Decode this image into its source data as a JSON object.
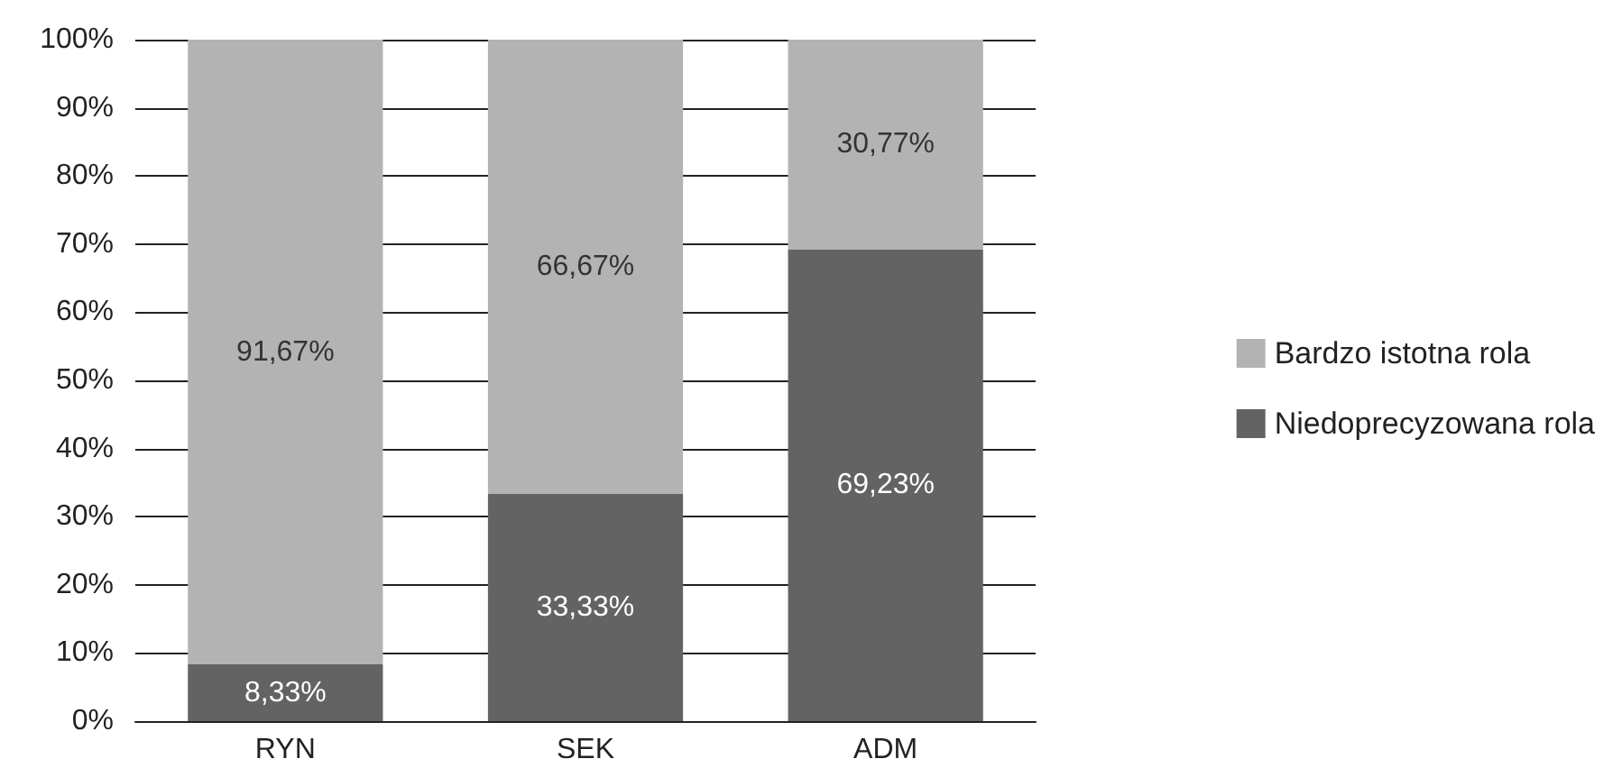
{
  "chart_data": {
    "type": "bar",
    "stacked": true,
    "categories": [
      "RYN",
      "SEK",
      "ADM"
    ],
    "series": [
      {
        "name": "Niedoprecyzowana rola",
        "color": "#636363",
        "values": [
          8.33,
          33.33,
          69.23
        ],
        "value_labels": [
          "8,33%",
          "33,33%",
          "69,23%"
        ]
      },
      {
        "name": "Bardzo istotna rola",
        "color": "#b3b3b4",
        "values": [
          91.67,
          66.67,
          30.77
        ],
        "value_labels": [
          "91,67%",
          "66,67%",
          "30,77%"
        ]
      }
    ],
    "ylim": [
      0,
      100
    ],
    "yticks": [
      {
        "value": 0,
        "label": "0%"
      },
      {
        "value": 10,
        "label": "10%"
      },
      {
        "value": 20,
        "label": "20%"
      },
      {
        "value": 30,
        "label": "30%"
      },
      {
        "value": 40,
        "label": "40%"
      },
      {
        "value": 50,
        "label": "50%"
      },
      {
        "value": 60,
        "label": "60%"
      },
      {
        "value": 70,
        "label": "70%"
      },
      {
        "value": 80,
        "label": "80%"
      },
      {
        "value": 90,
        "label": "90%"
      },
      {
        "value": 100,
        "label": "100%"
      }
    ],
    "grid": "y",
    "legend": "right"
  }
}
